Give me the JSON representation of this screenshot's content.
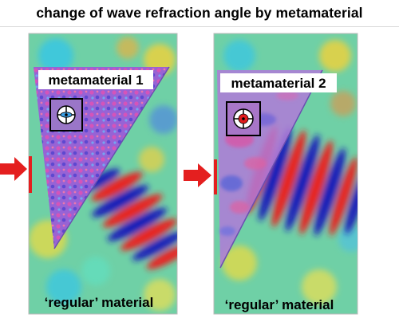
{
  "title": "change of wave refraction angle by metamaterial",
  "panels": [
    {
      "top_label": "metamaterial 1",
      "bottom_label": "‘regular’ material",
      "symbol_color": "#3aa0e8"
    },
    {
      "top_label": "metamaterial 2",
      "bottom_label": "‘regular’ material",
      "symbol_color": "#e01b1b"
    }
  ],
  "colors": {
    "arrow": "#e41f1f",
    "field_background": "#66cc99",
    "metamaterial_overlay": "#b060e0"
  }
}
